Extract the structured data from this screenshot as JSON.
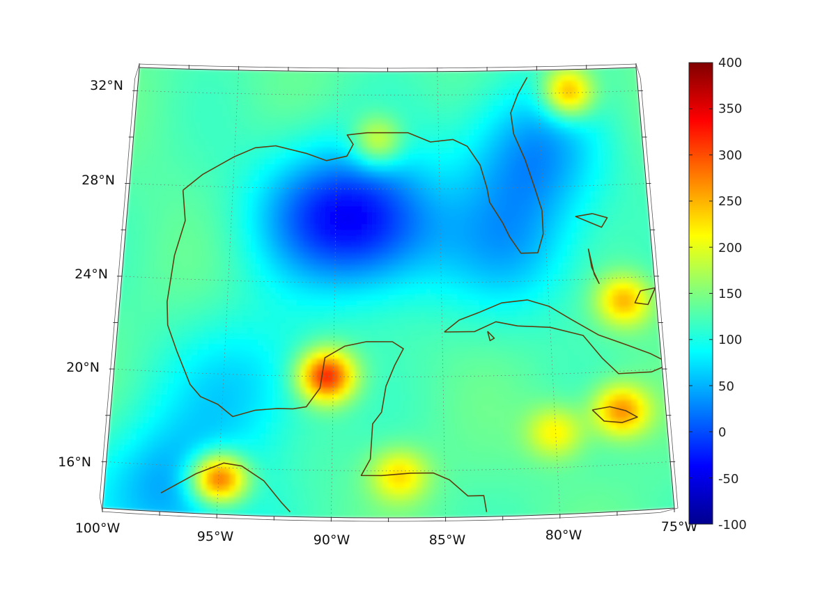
{
  "map": {
    "projection": "conic",
    "region": "Gulf of Mexico and Caribbean",
    "lon_range": [
      -100,
      -75
    ],
    "lat_range": [
      14,
      33
    ],
    "grid": true,
    "coastline_color": "#5c3d0e",
    "lat_labels": [
      "32°N",
      "28°N",
      "24°N",
      "20°N",
      "16°N"
    ],
    "lon_labels": [
      "100°W",
      "95°W",
      "90°W",
      "85°W",
      "80°W",
      "75°W"
    ],
    "colorbar": {
      "colormap": "jet",
      "ticks": [
        "400",
        "350",
        "300",
        "250",
        "200",
        "150",
        "100",
        "50",
        "0",
        "-50",
        "-100"
      ],
      "range": [
        -100,
        400
      ]
    }
  },
  "chart_data": {
    "type": "heatmap",
    "title": "",
    "xlabel": "",
    "ylabel": "",
    "xlim": [
      -100,
      -75
    ],
    "ylim": [
      14,
      33
    ],
    "clim": [
      -100,
      400
    ],
    "background_value": 130,
    "features": [
      {
        "name": "central gulf low",
        "lon": -88,
        "lat": 26.5,
        "value": 10
      },
      {
        "name": "northwest gulf low",
        "lon": -91,
        "lat": 27,
        "value": 40
      },
      {
        "name": "east florida low",
        "lon": -80.5,
        "lat": 29.5,
        "value": 40
      },
      {
        "name": "straits of florida low",
        "lon": -81.5,
        "lat": 25.5,
        "value": 60
      },
      {
        "name": "campeche low",
        "lon": -94,
        "lat": 19.5,
        "value": 70
      },
      {
        "name": "yucatan high",
        "lon": -90.3,
        "lat": 20,
        "value": 330
      },
      {
        "name": "tehuantepec high",
        "lon": -95,
        "lat": 15.5,
        "value": 340
      },
      {
        "name": "mississippi delta high",
        "lon": -88,
        "lat": 30,
        "value": 230
      },
      {
        "name": "georgia coast high",
        "lon": -78.5,
        "lat": 32,
        "value": 280
      },
      {
        "name": "bahamas high",
        "lon": -76.5,
        "lat": 23,
        "value": 250
      },
      {
        "name": "jamaica high",
        "lon": -77,
        "lat": 18.3,
        "value": 270
      },
      {
        "name": "honduras high",
        "lon": -87,
        "lat": 15.8,
        "value": 230
      },
      {
        "name": "south mexico low",
        "lon": -97,
        "lat": 14.8,
        "value": 40
      },
      {
        "name": "western caribbean high",
        "lon": -80,
        "lat": 17.5,
        "value": 220
      }
    ]
  }
}
